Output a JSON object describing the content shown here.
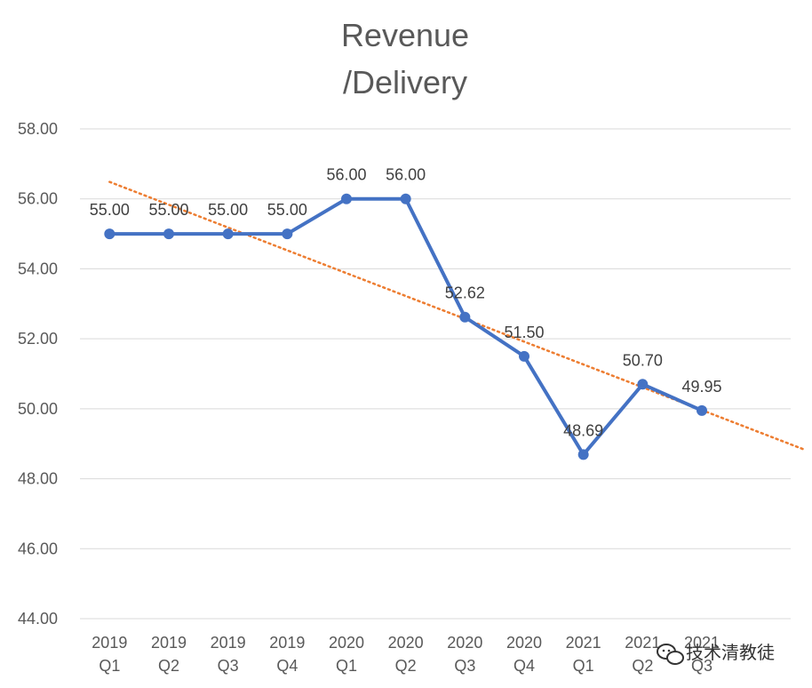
{
  "chart_data": {
    "type": "line",
    "title_lines": [
      "Revenue",
      "/Delivery"
    ],
    "categories": [
      [
        "2019",
        "Q1"
      ],
      [
        "2019",
        "Q2"
      ],
      [
        "2019",
        "Q3"
      ],
      [
        "2019",
        "Q4"
      ],
      [
        "2020",
        "Q1"
      ],
      [
        "2020",
        "Q2"
      ],
      [
        "2020",
        "Q3"
      ],
      [
        "2020",
        "Q4"
      ],
      [
        "2021",
        "Q1"
      ],
      [
        "2021",
        "Q2"
      ],
      [
        "2021",
        "Q3"
      ]
    ],
    "series": [
      {
        "values": [
          55.0,
          55.0,
          55.0,
          55.0,
          56.0,
          56.0,
          52.62,
          51.5,
          48.69,
          50.7,
          49.95
        ],
        "data_labels": [
          "55.00",
          "55.00",
          "55.00",
          "55.00",
          "56.00",
          "56.00",
          "52.62",
          "51.50",
          "48.69",
          "50.70",
          "49.95"
        ],
        "color": "#4472C4"
      }
    ],
    "trendline": {
      "type": "linear",
      "style": "dotted",
      "color": "#ED7D31",
      "extends_past_last_point": true
    },
    "yticks": [
      "44.00",
      "46.00",
      "48.00",
      "50.00",
      "52.00",
      "54.00",
      "56.00",
      "58.00"
    ],
    "ylim": [
      44,
      58
    ],
    "grid": true,
    "legend": "none"
  },
  "watermark": {
    "text": "技术清教徒",
    "icon": "wechat-icon"
  }
}
